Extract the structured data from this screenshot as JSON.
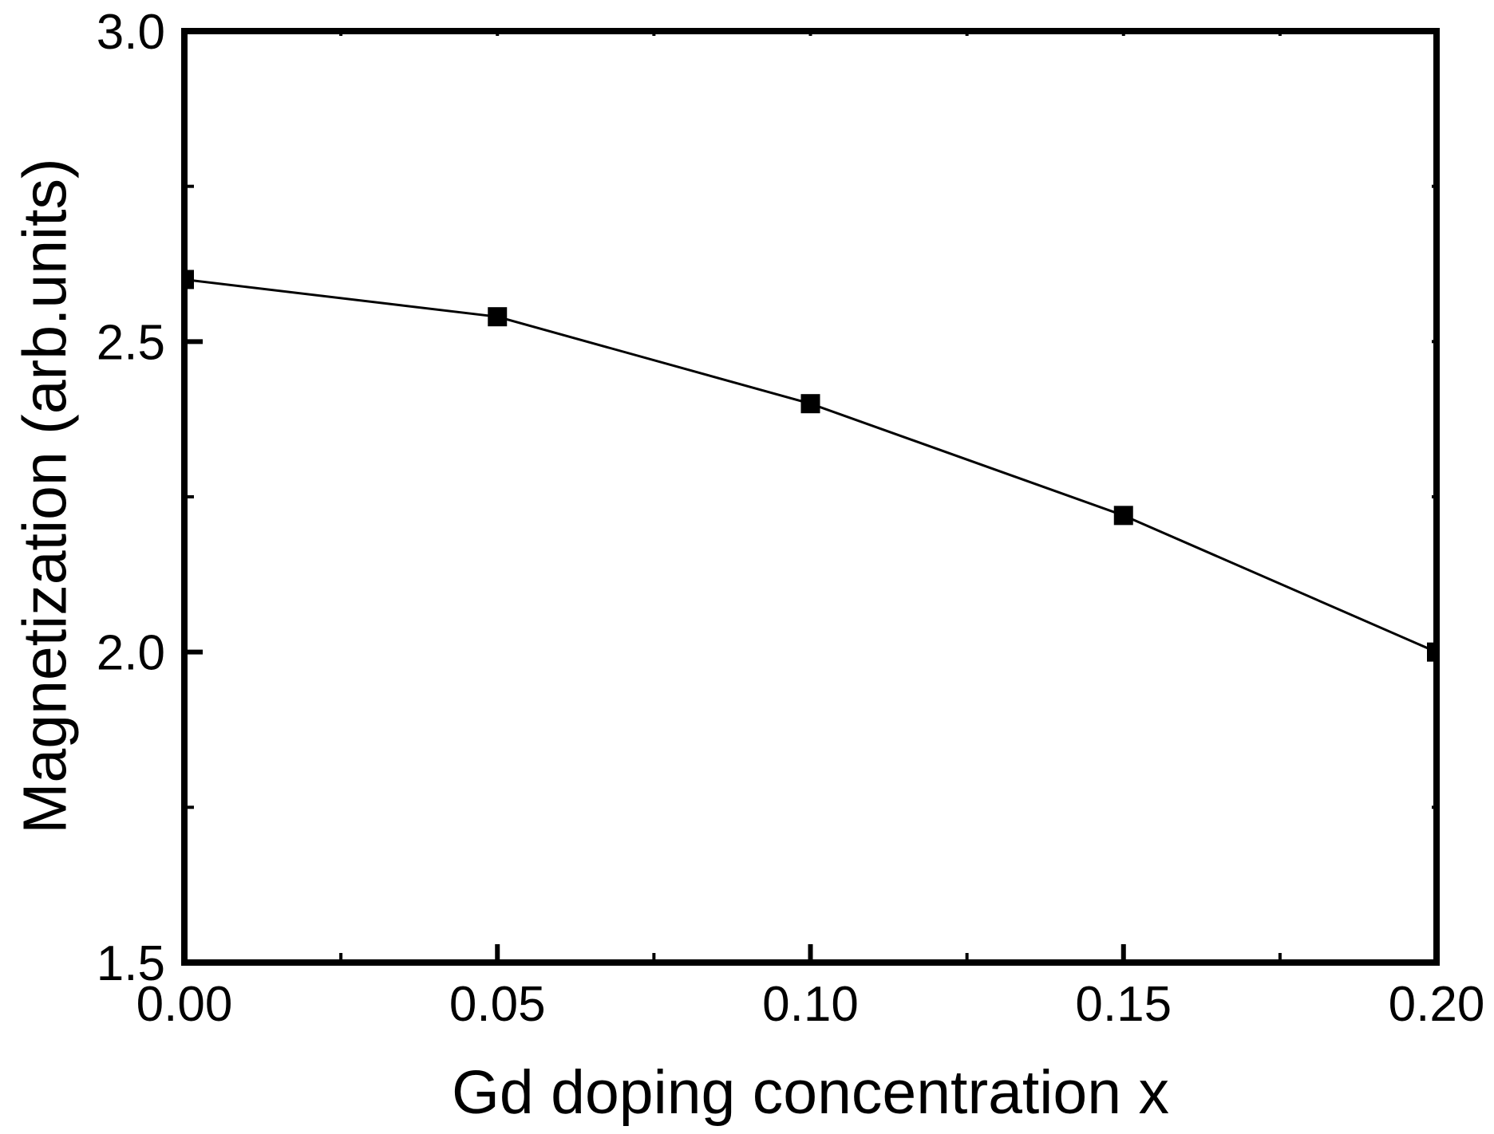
{
  "chart_data": {
    "type": "line",
    "title": "",
    "xlabel": "Gd doping concentration x",
    "ylabel": "Magnetization (arb.units)",
    "x": [
      0.0,
      0.05,
      0.1,
      0.15,
      0.2
    ],
    "y": [
      2.6,
      2.54,
      2.4,
      2.22,
      2.0
    ],
    "series_marker": "filled-square",
    "line_color": "#000000",
    "marker_color": "#000000",
    "background_color": "#ffffff",
    "xlim": [
      0.0,
      0.2
    ],
    "ylim": [
      1.5,
      3.0
    ],
    "x_ticks": [
      0.0,
      0.05,
      0.1,
      0.15,
      0.2
    ],
    "x_tick_labels": [
      "0.00",
      "0.05",
      "0.10",
      "0.15",
      "0.20"
    ],
    "x_minor_ticks": [
      0.025,
      0.075,
      0.125,
      0.175
    ],
    "y_ticks": [
      1.5,
      2.0,
      2.5,
      3.0
    ],
    "y_tick_labels": [
      "1.5",
      "2.0",
      "2.5",
      "3.0"
    ],
    "y_minor_ticks": [
      1.75,
      2.25,
      2.75
    ],
    "grid": "off",
    "legend": "none",
    "tick_direction": "in"
  }
}
